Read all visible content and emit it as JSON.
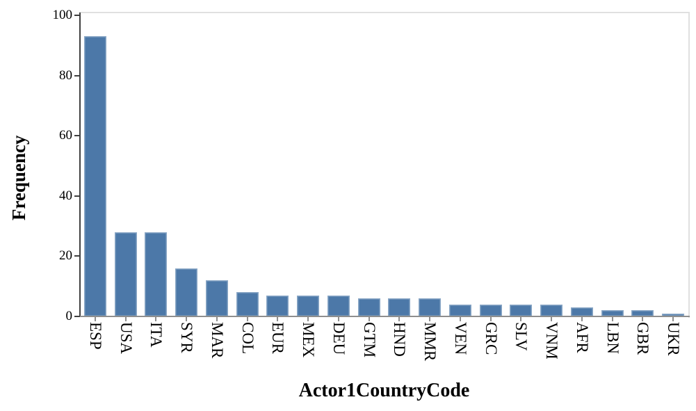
{
  "chart_data": {
    "type": "bar",
    "title": "",
    "xlabel": "Actor1CountryCode",
    "ylabel": "Frequency",
    "categories": [
      "ESP",
      "USA",
      "ITA",
      "SYR",
      "MAR",
      "COL",
      "EUR",
      "MEX",
      "DEU",
      "GTM",
      "HND",
      "MMR",
      "VEN",
      "GRC",
      "SLV",
      "VNM",
      "AFR",
      "LBN",
      "GBR",
      "UKR"
    ],
    "values": [
      93,
      28,
      28,
      16,
      12,
      8,
      7,
      7,
      7,
      6,
      6,
      6,
      4,
      4,
      4,
      4,
      3,
      2,
      2,
      1
    ],
    "ylim": [
      0,
      100
    ],
    "yticks": [
      0,
      20,
      40,
      60,
      80,
      100
    ],
    "grid": false,
    "legend": false,
    "colors": {
      "bar": "#4c78a8",
      "axis_left": "#3f3f3f",
      "axis_bottom": "#8e8e8e",
      "frame": "#e0e0e0",
      "text": "#000000"
    }
  }
}
